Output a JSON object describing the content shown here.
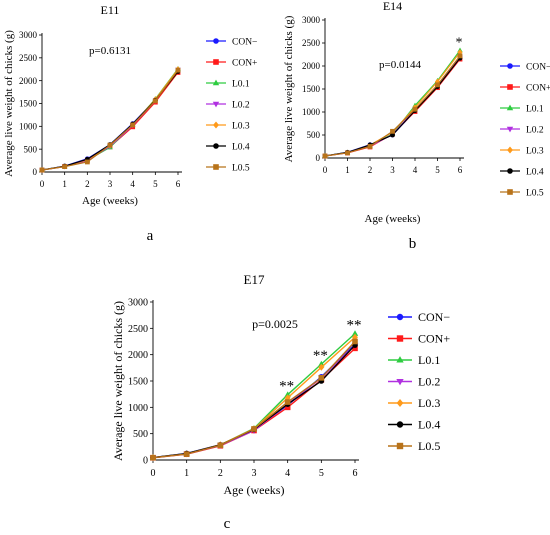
{
  "figure": {
    "panels": [
      "a",
      "b",
      "c"
    ]
  },
  "chart_data": [
    {
      "type": "line",
      "panel_letter": "a",
      "title": "E11",
      "annotation": "p=0.6131",
      "xlabel": "Age (weeks)",
      "ylabel": "Average live weight of chicks (g)",
      "x": [
        0,
        1,
        2,
        3,
        4,
        5,
        6
      ],
      "xlim": [
        0,
        6
      ],
      "ylim": [
        0,
        3000
      ],
      "yticks": [
        0,
        500,
        1000,
        1500,
        2000,
        2500,
        3000
      ],
      "legend_position": "right",
      "significance": [],
      "series": [
        {
          "name": "CON−",
          "color": "#1a1aff",
          "marker": "circle",
          "values": [
            45,
            130,
            290,
            600,
            1060,
            1580,
            2220
          ]
        },
        {
          "name": "CON+",
          "color": "#ff1a1a",
          "marker": "square",
          "values": [
            42,
            120,
            250,
            550,
            990,
            1530,
            2180
          ]
        },
        {
          "name": "L0.1",
          "color": "#2ecc40",
          "marker": "triangle-up",
          "values": [
            44,
            125,
            260,
            540,
            1030,
            1600,
            2260
          ]
        },
        {
          "name": "L0.2",
          "color": "#b030e0",
          "marker": "triangle-down",
          "values": [
            43,
            120,
            255,
            560,
            1020,
            1560,
            2240
          ]
        },
        {
          "name": "L0.3",
          "color": "#ff9a1a",
          "marker": "diamond",
          "values": [
            44,
            122,
            270,
            580,
            1040,
            1590,
            2250
          ]
        },
        {
          "name": "L0.4",
          "color": "#000000",
          "marker": "circle",
          "values": [
            45,
            128,
            280,
            600,
            1050,
            1570,
            2200
          ]
        },
        {
          "name": "L0.5",
          "color": "#b8731a",
          "marker": "square",
          "values": [
            44,
            118,
            220,
            590,
            1030,
            1560,
            2230
          ]
        }
      ]
    },
    {
      "type": "line",
      "panel_letter": "b",
      "title": "E14",
      "annotation": "p=0.0144",
      "xlabel": "Age (weeks)",
      "ylabel": "Average live weight of chicks (g)",
      "x": [
        0,
        1,
        2,
        3,
        4,
        5,
        6
      ],
      "xlim": [
        0,
        6
      ],
      "ylim": [
        0,
        3000
      ],
      "yticks": [
        0,
        500,
        1000,
        1500,
        2000,
        2500,
        3000
      ],
      "legend_position": "right",
      "significance": [
        {
          "x": 6,
          "label": "*"
        }
      ],
      "series": [
        {
          "name": "CON−",
          "color": "#1a1aff",
          "marker": "circle",
          "values": [
            45,
            125,
            290,
            500,
            1020,
            1560,
            2170
          ]
        },
        {
          "name": "CON+",
          "color": "#ff1a1a",
          "marker": "square",
          "values": [
            42,
            110,
            240,
            520,
            1010,
            1530,
            2150
          ]
        },
        {
          "name": "L0.1",
          "color": "#2ecc40",
          "marker": "triangle-up",
          "values": [
            44,
            120,
            270,
            520,
            1140,
            1680,
            2340
          ]
        },
        {
          "name": "L0.2",
          "color": "#b030e0",
          "marker": "triangle-down",
          "values": [
            43,
            115,
            260,
            510,
            1050,
            1570,
            2180
          ]
        },
        {
          "name": "L0.3",
          "color": "#ff9a1a",
          "marker": "diamond",
          "values": [
            44,
            118,
            280,
            560,
            1100,
            1660,
            2300
          ]
        },
        {
          "name": "L0.4",
          "color": "#000000",
          "marker": "circle",
          "values": [
            45,
            122,
            285,
            500,
            1030,
            1550,
            2170
          ]
        },
        {
          "name": "L0.5",
          "color": "#b8731a",
          "marker": "square",
          "values": [
            44,
            112,
            250,
            580,
            1060,
            1590,
            2220
          ]
        }
      ]
    },
    {
      "type": "line",
      "panel_letter": "c",
      "title": "E17",
      "annotation": "p=0.0025",
      "xlabel": "Age (weeks)",
      "ylabel": "Average live weight of chicks (g)",
      "x": [
        0,
        1,
        2,
        3,
        4,
        5,
        6
      ],
      "xlim": [
        0,
        6
      ],
      "ylim": [
        0,
        3000
      ],
      "yticks": [
        0,
        500,
        1000,
        1500,
        2000,
        2500,
        3000
      ],
      "legend_position": "right",
      "significance": [
        {
          "x": 4,
          "label": "**"
        },
        {
          "x": 5,
          "label": "**"
        },
        {
          "x": 6,
          "label": "**"
        }
      ],
      "series": [
        {
          "name": "CON−",
          "color": "#1a1aff",
          "marker": "circle",
          "values": [
            45,
            125,
            290,
            580,
            1040,
            1580,
            2200
          ]
        },
        {
          "name": "CON+",
          "color": "#ff1a1a",
          "marker": "square",
          "values": [
            42,
            110,
            270,
            560,
            1000,
            1520,
            2120
          ]
        },
        {
          "name": "L0.1",
          "color": "#2ecc40",
          "marker": "triangle-up",
          "values": [
            44,
            120,
            285,
            600,
            1240,
            1820,
            2400
          ]
        },
        {
          "name": "L0.2",
          "color": "#b030e0",
          "marker": "triangle-down",
          "values": [
            43,
            115,
            275,
            560,
            1060,
            1560,
            2180
          ]
        },
        {
          "name": "L0.3",
          "color": "#ff9a1a",
          "marker": "diamond",
          "values": [
            44,
            118,
            290,
            590,
            1180,
            1760,
            2330
          ]
        },
        {
          "name": "L0.4",
          "color": "#000000",
          "marker": "circle",
          "values": [
            45,
            122,
            285,
            580,
            1060,
            1500,
            2180
          ]
        },
        {
          "name": "L0.5",
          "color": "#b8731a",
          "marker": "square",
          "values": [
            44,
            112,
            280,
            590,
            1100,
            1560,
            2250
          ]
        }
      ]
    }
  ]
}
